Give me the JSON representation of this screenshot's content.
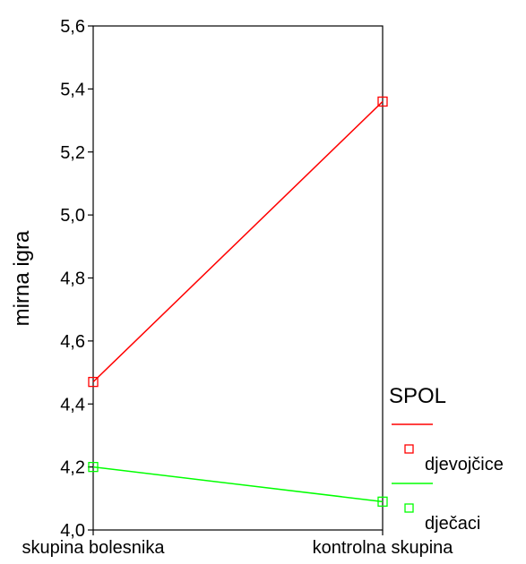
{
  "chart_data": {
    "type": "line",
    "categories": [
      "skupina bolesnika",
      "kontrolna skupina"
    ],
    "series": [
      {
        "name": "djevojčice",
        "values": [
          4.47,
          5.36
        ],
        "color": "#ff0000"
      },
      {
        "name": "dječaci",
        "values": [
          4.2,
          4.09
        ],
        "color": "#00ff00"
      }
    ],
    "ylabel": "mirna igra",
    "xlabel": "",
    "ylim": [
      4.0,
      5.6
    ],
    "yticks": [
      "4,0",
      "4,2",
      "4,4",
      "4,6",
      "4,8",
      "5,0",
      "5,2",
      "5,4",
      "5,6"
    ],
    "grid": false,
    "marker": "open-square",
    "legend": {
      "title": "SPOL",
      "position": "right"
    }
  }
}
